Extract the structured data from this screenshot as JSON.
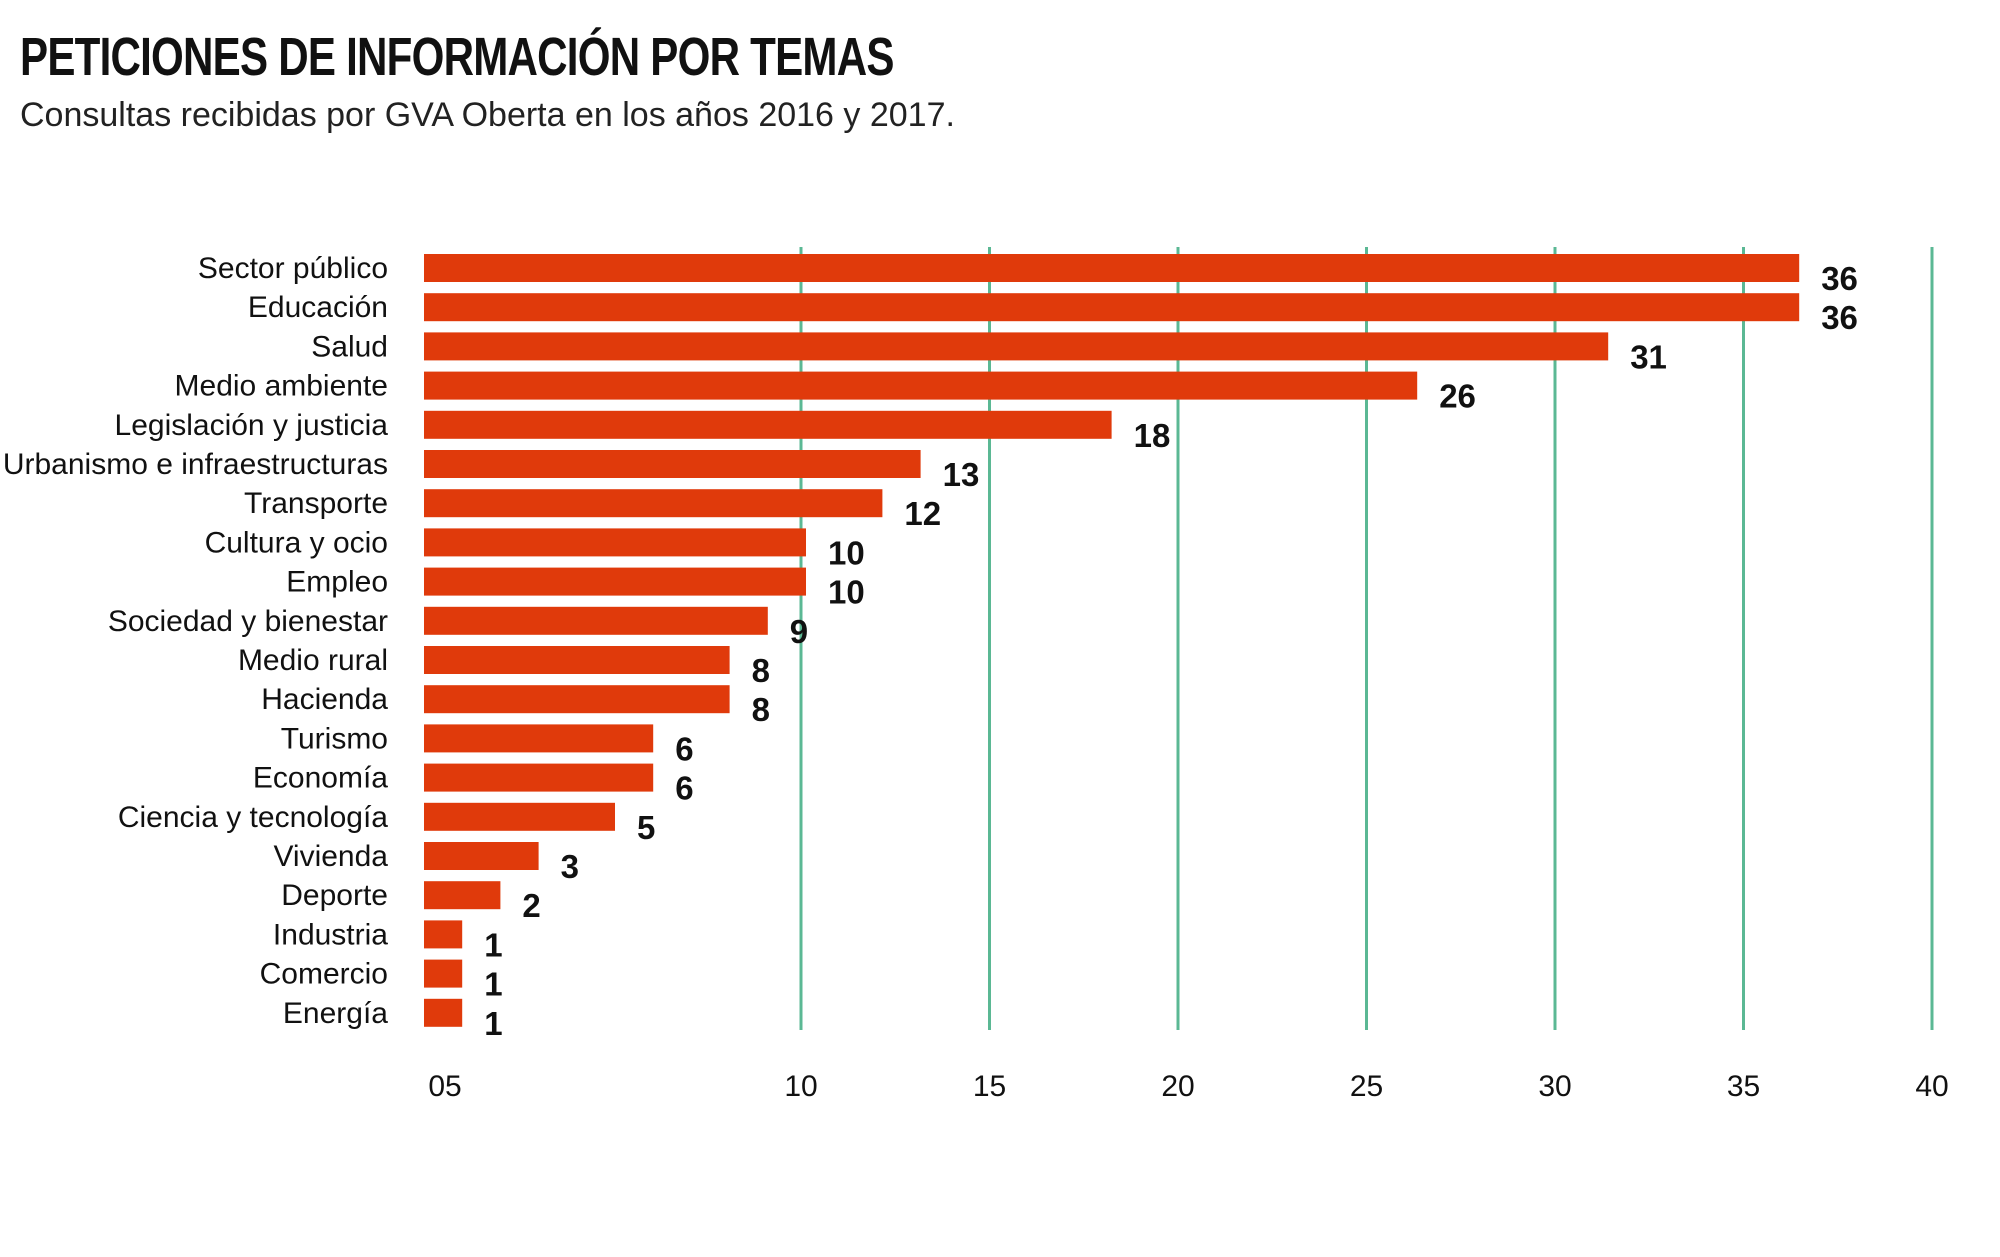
{
  "chart_data": {
    "type": "bar",
    "orientation": "horizontal",
    "title": "PETICIONES DE INFORMACIÓN POR TEMAS",
    "subtitle": "Consultas recibidas por GVA Oberta en los años 2016 y 2017.",
    "categories": [
      "Sector público",
      "Educación",
      "Salud",
      "Medio ambiente",
      "Legislación y justicia",
      "Urbanismo e infraestructuras",
      "Transporte",
      "Cultura y ocio",
      "Empleo",
      "Sociedad y bienestar",
      "Medio rural",
      "Hacienda",
      "Turismo",
      "Economía",
      "Ciencia y tecnología",
      "Vivienda",
      "Deporte",
      "Industria",
      "Comercio",
      "Energía"
    ],
    "values": [
      36,
      36,
      31,
      26,
      18,
      13,
      12,
      10,
      10,
      9,
      8,
      8,
      6,
      6,
      5,
      3,
      2,
      1,
      1,
      1
    ],
    "xlim": [
      0,
      40
    ],
    "x_ticks": [
      5,
      10,
      15,
      20,
      25,
      30,
      35,
      40
    ],
    "x_tick_labels": [
      "05",
      "10",
      "15",
      "20",
      "25",
      "30",
      "35",
      "40"
    ],
    "grid": "vertical",
    "bar_color": "#e03a0b",
    "grid_color": "#5bb894",
    "label_color": "#111111"
  }
}
